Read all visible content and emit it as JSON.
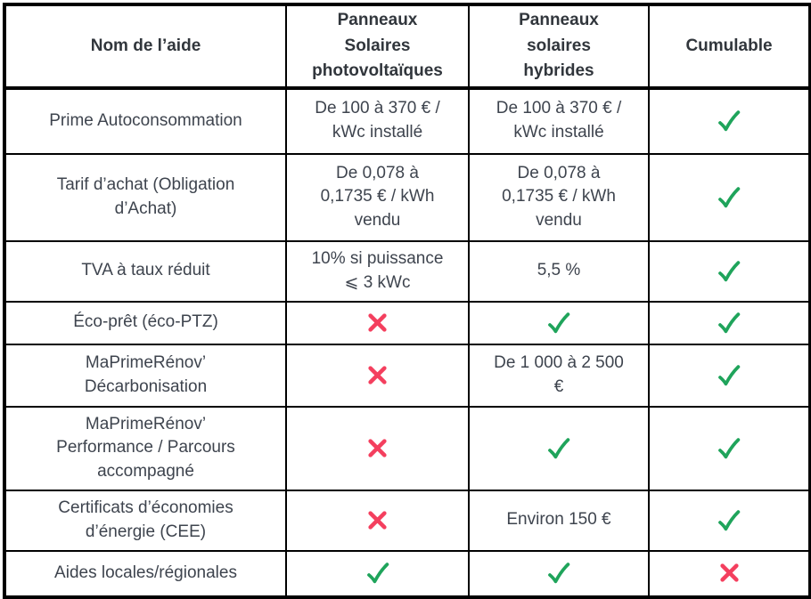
{
  "colors": {
    "check_green": "#1FA45B",
    "cross_red": "#F43F5E",
    "border_black": "#000000",
    "text_dark": "#3e444e"
  },
  "table": {
    "columns": [
      {
        "label": "Nom de l’aide"
      },
      {
        "label": "Panneaux\nSolaires\nphotovoltaïques"
      },
      {
        "label": "Panneaux\nsolaires\nhybrides"
      },
      {
        "label": "Cumulable"
      }
    ],
    "rows": [
      {
        "name": "Prime Autoconsommation",
        "pv": {
          "type": "text",
          "value": "De 100 à 370 € /\nkWc installé"
        },
        "hybride": {
          "type": "text",
          "value": "De 100 à 370 € /\nkWc installé"
        },
        "cumulable": {
          "type": "check"
        }
      },
      {
        "name": "Tarif d’achat (Obligation\nd’Achat)",
        "pv": {
          "type": "text",
          "value": "De 0,078 à\n0,1735 € / kWh\nvendu"
        },
        "hybride": {
          "type": "text",
          "value": "De 0,078 à\n0,1735 € / kWh\nvendu"
        },
        "cumulable": {
          "type": "check"
        }
      },
      {
        "name": "TVA à taux réduit",
        "pv": {
          "type": "text",
          "value": "10% si puissance\n⩽ 3 kWc"
        },
        "hybride": {
          "type": "text",
          "value": "5,5 %"
        },
        "cumulable": {
          "type": "check"
        }
      },
      {
        "name": "Éco-prêt (éco-PTZ)",
        "pv": {
          "type": "cross"
        },
        "hybride": {
          "type": "check"
        },
        "cumulable": {
          "type": "check"
        }
      },
      {
        "name": "MaPrimeRénov’\nDécarbonisation",
        "pv": {
          "type": "cross"
        },
        "hybride": {
          "type": "text",
          "value": "De 1 000 à 2 500\n€"
        },
        "cumulable": {
          "type": "check"
        }
      },
      {
        "name": "MaPrimeRénov’\nPerformance / Parcours\naccompagné",
        "pv": {
          "type": "cross"
        },
        "hybride": {
          "type": "check"
        },
        "cumulable": {
          "type": "check"
        }
      },
      {
        "name": "Certificats d’économies\nd’énergie (CEE)",
        "pv": {
          "type": "cross"
        },
        "hybride": {
          "type": "text",
          "value": "Environ 150 €"
        },
        "cumulable": {
          "type": "check"
        }
      },
      {
        "name": "Aides locales/régionales",
        "pv": {
          "type": "check"
        },
        "hybride": {
          "type": "check"
        },
        "cumulable": {
          "type": "cross"
        }
      }
    ]
  }
}
